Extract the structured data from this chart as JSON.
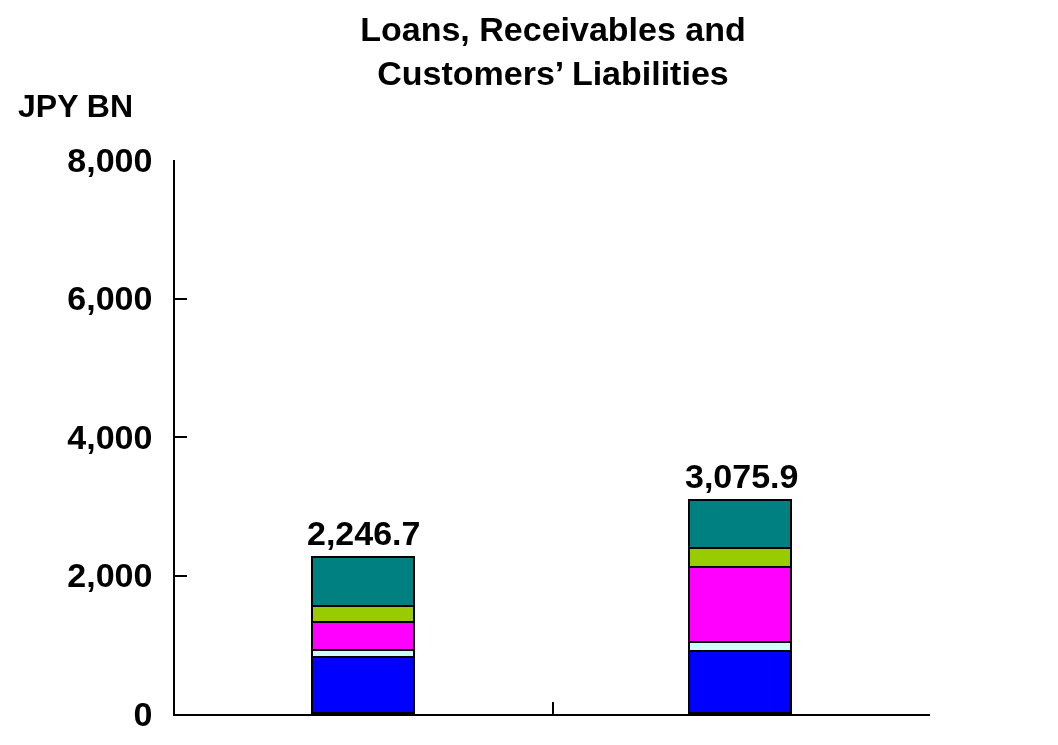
{
  "chart_data": {
    "type": "bar",
    "title": "Loans, Receivables and Customers’ Liabilities",
    "ylabel": "JPY BN",
    "categories": [
      null,
      null
    ],
    "stacked": true,
    "series": [
      {
        "color": "#0000ff",
        "values": [
          810,
          900
        ]
      },
      {
        "color": "#ccffff",
        "values": [
          100,
          130
        ]
      },
      {
        "color": "#ff00ff",
        "values": [
          400,
          1080
        ]
      },
      {
        "color": "#99cc00",
        "values": [
          240,
          270
        ]
      },
      {
        "color": "#008080",
        "values": [
          696.7,
          695.9
        ]
      }
    ],
    "totals": [
      "2,246.7",
      "3,075.9"
    ],
    "ylim": [
      0,
      8000
    ],
    "yticks": [
      0,
      {
        "value": 2000,
        "label": "2,000"
      },
      {
        "value": 4000,
        "label": "4,000"
      },
      {
        "value": 6000,
        "label": "6,000"
      },
      {
        "value": 8000,
        "label": "8,000"
      }
    ],
    "tick_labels": "y",
    "grid": false
  }
}
